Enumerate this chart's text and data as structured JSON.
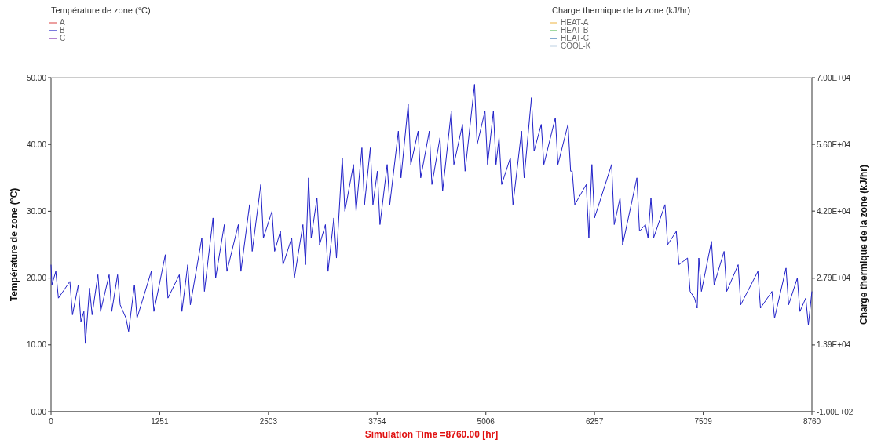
{
  "chart_data": {
    "type": "line",
    "xlabel": "Simulation Time =8760.00 [hr]",
    "ylabel": "Température de zone (°C)",
    "y2label": "Charge thermique de la zone (kJ/hr)",
    "legend_title": "Température de zone (°C)",
    "annotations": [
      "Charge thermique de la zone (kJ/hr)"
    ],
    "legend": "top",
    "xlim": [
      0,
      8760
    ],
    "xticks": [
      0,
      1251,
      2503,
      3754,
      5006,
      6257,
      7509,
      8760
    ],
    "ylim": [
      0,
      50
    ],
    "yticks": [
      {
        "value": 0,
        "label": "0.00"
      },
      {
        "value": 10,
        "label": "10.00"
      },
      {
        "value": 20,
        "label": "20.00"
      },
      {
        "value": 30,
        "label": "30.00"
      },
      {
        "value": 40,
        "label": "40.00"
      },
      {
        "value": 50,
        "label": "50.00"
      }
    ],
    "y2lim": [
      -100,
      70000
    ],
    "y2ticks": [
      {
        "value": -100,
        "label": "-1.00E+02"
      },
      {
        "value": 13900,
        "label": "1.39E+04"
      },
      {
        "value": 27900,
        "label": "2.79E+04"
      },
      {
        "value": 42000,
        "label": "4.20E+04"
      },
      {
        "value": 56000,
        "label": "5.60E+04"
      },
      {
        "value": 70000,
        "label": "7.00E+04"
      }
    ],
    "x": [
      0,
      10,
      55,
      85,
      217,
      247,
      314,
      344,
      378,
      395,
      443,
      473,
      540,
      570,
      669,
      699,
      766,
      796,
      863,
      893,
      960,
      990,
      1154,
      1184,
      1316,
      1346,
      1477,
      1507,
      1574,
      1604,
      1736,
      1766,
      1865,
      1895,
      1995,
      2025,
      2156,
      2186,
      2286,
      2316,
      2415,
      2445,
      2544,
      2574,
      2641,
      2671,
      2771,
      2801,
      2900,
      2930,
      2965,
      2995,
      3062,
      3092,
      3159,
      3189,
      3256,
      3286,
      3353,
      3383,
      3482,
      3512,
      3579,
      3609,
      3676,
      3706,
      3757,
      3787,
      3870,
      3900,
      3999,
      4029,
      4112,
      4142,
      4226,
      4256,
      4355,
      4385,
      4478,
      4508,
      4608,
      4638,
      4737,
      4767,
      4876,
      4906,
      4996,
      5026,
      5093,
      5123,
      5158,
      5188,
      5288,
      5318,
      5417,
      5447,
      5531,
      5561,
      5644,
      5674,
      5806,
      5836,
      5952,
      5982,
      6000,
      6030,
      6162,
      6192,
      6227,
      6257,
      6454,
      6484,
      6551,
      6581,
      6745,
      6775,
      6843,
      6873,
      6907,
      6937,
      7069,
      7099,
      7199,
      7229,
      7328,
      7358,
      7409,
      7439,
      7458,
      7488,
      7604,
      7634,
      7749,
      7779,
      7911,
      7941,
      8138,
      8168,
      8300,
      8330,
      8462,
      8492,
      8592,
      8622,
      8689,
      8719,
      8760
    ],
    "series": [
      {
        "name": "A",
        "color": "#e06060",
        "values": [
          null,
          null,
          null,
          null,
          null,
          null,
          null,
          null,
          null,
          null,
          null,
          null,
          null,
          null,
          null,
          null,
          null,
          null,
          null,
          null,
          null,
          null,
          null,
          null,
          null,
          null,
          null,
          null,
          null,
          null,
          null,
          null,
          null,
          null,
          null,
          null,
          null,
          null,
          null,
          null,
          null,
          null,
          null,
          null,
          null,
          null,
          null,
          null,
          null,
          null,
          null,
          null,
          null,
          null,
          null,
          null,
          null,
          null,
          null,
          null,
          null,
          null,
          null,
          null,
          null,
          null,
          null,
          null,
          null,
          null,
          null,
          null,
          null,
          null,
          null,
          null,
          null,
          null,
          null,
          null,
          null,
          null,
          null,
          null,
          null,
          null,
          null,
          null,
          null,
          null,
          null,
          null,
          null,
          null,
          null,
          null,
          null,
          null,
          null,
          null,
          null,
          null,
          null,
          null,
          null,
          null,
          null,
          null,
          null,
          null,
          null,
          null,
          null,
          null,
          null,
          null,
          null,
          null,
          null,
          null,
          null,
          null,
          null,
          null,
          null,
          null,
          null,
          null,
          null,
          null,
          null,
          null,
          null,
          null,
          null,
          null,
          null,
          null,
          null,
          null,
          null,
          null,
          null,
          null,
          null,
          null,
          null
        ]
      },
      {
        "name": "B",
        "color": "#2020c8",
        "values": [
          22,
          19,
          21,
          17,
          19.5,
          14.5,
          19,
          13.5,
          15,
          10.2,
          18.5,
          14.5,
          20.5,
          15,
          20.5,
          15,
          20.5,
          16,
          14,
          12,
          19,
          14,
          21,
          15,
          23.5,
          17,
          20.5,
          15,
          22,
          16,
          26,
          18,
          29,
          20,
          28,
          21,
          28,
          21,
          31,
          24,
          34,
          26,
          30,
          24,
          27,
          22,
          26,
          20,
          28,
          22,
          35,
          26,
          32,
          25,
          28,
          21,
          29,
          23,
          38,
          30,
          37,
          30,
          39.5,
          31,
          39.5,
          31,
          36,
          28,
          37,
          31,
          42,
          35,
          46,
          37,
          42,
          35,
          42,
          34,
          41,
          33,
          45,
          37,
          43,
          36,
          49,
          40,
          45,
          37,
          45,
          37,
          41,
          34,
          38,
          31,
          42,
          35,
          47,
          39,
          43,
          37,
          44,
          37,
          43,
          36,
          36,
          31,
          34,
          26,
          37,
          29,
          37,
          28,
          32,
          25,
          35,
          27,
          28,
          26,
          32,
          26,
          31,
          25,
          27,
          22,
          23,
          18,
          17,
          15.5,
          23,
          18,
          25.5,
          19,
          24,
          18,
          22,
          16,
          21,
          15.5,
          18,
          14,
          21.5,
          16,
          20,
          15,
          17,
          13,
          18
        ]
      },
      {
        "name": "C",
        "color": "#8030b0",
        "values": [
          null,
          null,
          null,
          null,
          null,
          null,
          null,
          null,
          null,
          null,
          null,
          null,
          null,
          null,
          null,
          null,
          null,
          null,
          null,
          null,
          null,
          null,
          null,
          null,
          null,
          null,
          null,
          null,
          null,
          null,
          null,
          null,
          null,
          null,
          null,
          null,
          null,
          null,
          null,
          null,
          null,
          null,
          null,
          null,
          null,
          null,
          null,
          null,
          null,
          null,
          null,
          null,
          null,
          null,
          null,
          null,
          null,
          null,
          null,
          null,
          null,
          null,
          null,
          null,
          null,
          null,
          null,
          null,
          null,
          null,
          null,
          null,
          null,
          null,
          null,
          null,
          null,
          null,
          null,
          null,
          null,
          null,
          null,
          null,
          null,
          null,
          null,
          null,
          null,
          null,
          null,
          null,
          null,
          null,
          null,
          null,
          null,
          null,
          null,
          null,
          null,
          null,
          null,
          null,
          null,
          null,
          null,
          null,
          null,
          null,
          null,
          null,
          null,
          null,
          null,
          null,
          null,
          null,
          null,
          null,
          null,
          null,
          null,
          null,
          null,
          null,
          null,
          null,
          null,
          null,
          null,
          null,
          null,
          null,
          null,
          null,
          null,
          null,
          null,
          null,
          null,
          null,
          null,
          null,
          null,
          null,
          null
        ]
      },
      {
        "name": "HEAT-A",
        "color": "#f0c060",
        "values": [
          null,
          null,
          null,
          null,
          null,
          null,
          null,
          null,
          null,
          null,
          null,
          null,
          null,
          null,
          null,
          null,
          null,
          null,
          null,
          null,
          null,
          null,
          null,
          null,
          null,
          null,
          null,
          null,
          null,
          null,
          null,
          null,
          null,
          null,
          null,
          null,
          null,
          null,
          null,
          null,
          null,
          null,
          null,
          null,
          null,
          null,
          null,
          null,
          null,
          null,
          null,
          null,
          null,
          null,
          null,
          null,
          null,
          null,
          null,
          null,
          null,
          null,
          null,
          null,
          null,
          null,
          null,
          null,
          null,
          null,
          null,
          null,
          null,
          null,
          null,
          null,
          null,
          null,
          null,
          null,
          null,
          null,
          null,
          null,
          null,
          null,
          null,
          null,
          null,
          null,
          null,
          null,
          null,
          null,
          null,
          null,
          null,
          null,
          null,
          null,
          null,
          null,
          null,
          null,
          null,
          null,
          null,
          null,
          null,
          null,
          null,
          null,
          null,
          null,
          null,
          null,
          null,
          null,
          null,
          null,
          null,
          null,
          null,
          null,
          null,
          null,
          null,
          null,
          null,
          null,
          null,
          null,
          null,
          null,
          null,
          null,
          null,
          null,
          null,
          null,
          null,
          null,
          null,
          null,
          null,
          null,
          null
        ],
        "axis": "y2"
      },
      {
        "name": "HEAT-B",
        "color": "#60c060",
        "values": [
          null,
          null,
          null,
          null,
          null,
          null,
          null,
          null,
          null,
          null,
          null,
          null,
          null,
          null,
          null,
          null,
          null,
          null,
          null,
          null,
          null,
          null,
          null,
          null,
          null,
          null,
          null,
          null,
          null,
          null,
          null,
          null,
          null,
          null,
          null,
          null,
          null,
          null,
          null,
          null,
          null,
          null,
          null,
          null,
          null,
          null,
          null,
          null,
          null,
          null,
          null,
          null,
          null,
          null,
          null,
          null,
          null,
          null,
          null,
          null,
          null,
          null,
          null,
          null,
          null,
          null,
          null,
          null,
          null,
          null,
          null,
          null,
          null,
          null,
          null,
          null,
          null,
          null,
          null,
          null,
          null,
          null,
          null,
          null,
          null,
          null,
          null,
          null,
          null,
          null,
          null,
          null,
          null,
          null,
          null,
          null,
          null,
          null,
          null,
          null,
          null,
          null,
          null,
          null,
          null,
          null,
          null,
          null,
          null,
          null,
          null,
          null,
          null,
          null,
          null,
          null,
          null,
          null,
          null,
          null,
          null,
          null,
          null,
          null,
          null,
          null,
          null,
          null,
          null,
          null,
          null,
          null,
          null,
          null,
          null,
          null,
          null,
          null,
          null,
          null,
          null,
          null,
          null,
          null,
          null,
          null,
          null
        ],
        "axis": "y2"
      },
      {
        "name": "HEAT-C",
        "color": "#3070b0",
        "values": [
          null,
          null,
          null,
          null,
          null,
          null,
          null,
          null,
          null,
          null,
          null,
          null,
          null,
          null,
          null,
          null,
          null,
          null,
          null,
          null,
          null,
          null,
          null,
          null,
          null,
          null,
          null,
          null,
          null,
          null,
          null,
          null,
          null,
          null,
          null,
          null,
          null,
          null,
          null,
          null,
          null,
          null,
          null,
          null,
          null,
          null,
          null,
          null,
          null,
          null,
          null,
          null,
          null,
          null,
          null,
          null,
          null,
          null,
          null,
          null,
          null,
          null,
          null,
          null,
          null,
          null,
          null,
          null,
          null,
          null,
          null,
          null,
          null,
          null,
          null,
          null,
          null,
          null,
          null,
          null,
          null,
          null,
          null,
          null,
          null,
          null,
          null,
          null,
          null,
          null,
          null,
          null,
          null,
          null,
          null,
          null,
          null,
          null,
          null,
          null,
          null,
          null,
          null,
          null,
          null,
          null,
          null,
          null,
          null,
          null,
          null,
          null,
          null,
          null,
          null,
          null,
          null,
          null,
          null,
          null,
          null,
          null,
          null,
          null,
          null,
          null,
          null,
          null,
          null,
          null,
          null,
          null,
          null,
          null,
          null,
          null,
          null,
          null,
          null,
          null,
          null,
          null,
          null,
          null,
          null,
          null,
          null
        ],
        "axis": "y2"
      },
      {
        "name": "COOL-K",
        "color": "#c8d8e8",
        "values": [
          null,
          null,
          null,
          null,
          null,
          null,
          null,
          null,
          null,
          null,
          null,
          null,
          null,
          null,
          null,
          null,
          null,
          null,
          null,
          null,
          null,
          null,
          null,
          null,
          null,
          null,
          null,
          null,
          null,
          null,
          null,
          null,
          null,
          null,
          null,
          null,
          null,
          null,
          null,
          null,
          null,
          null,
          null,
          null,
          null,
          null,
          null,
          null,
          null,
          null,
          null,
          null,
          null,
          null,
          null,
          null,
          null,
          null,
          null,
          null,
          null,
          null,
          null,
          null,
          null,
          null,
          null,
          null,
          null,
          null,
          null,
          null,
          null,
          null,
          null,
          null,
          null,
          null,
          null,
          null,
          null,
          null,
          null,
          null,
          null,
          null,
          null,
          null,
          null,
          null,
          null,
          null,
          null,
          null,
          null,
          null,
          null,
          null,
          null,
          null,
          null,
          null,
          null,
          null,
          null,
          null,
          null,
          null,
          null,
          null,
          null,
          null,
          null,
          null,
          null,
          null,
          null,
          null,
          null,
          null,
          null,
          null,
          null,
          null,
          null,
          null,
          null,
          null,
          null,
          null,
          null,
          null,
          null,
          null,
          null,
          null,
          null,
          null,
          null,
          null,
          null,
          null,
          null,
          null,
          null,
          null,
          null
        ],
        "axis": "y2"
      }
    ]
  }
}
